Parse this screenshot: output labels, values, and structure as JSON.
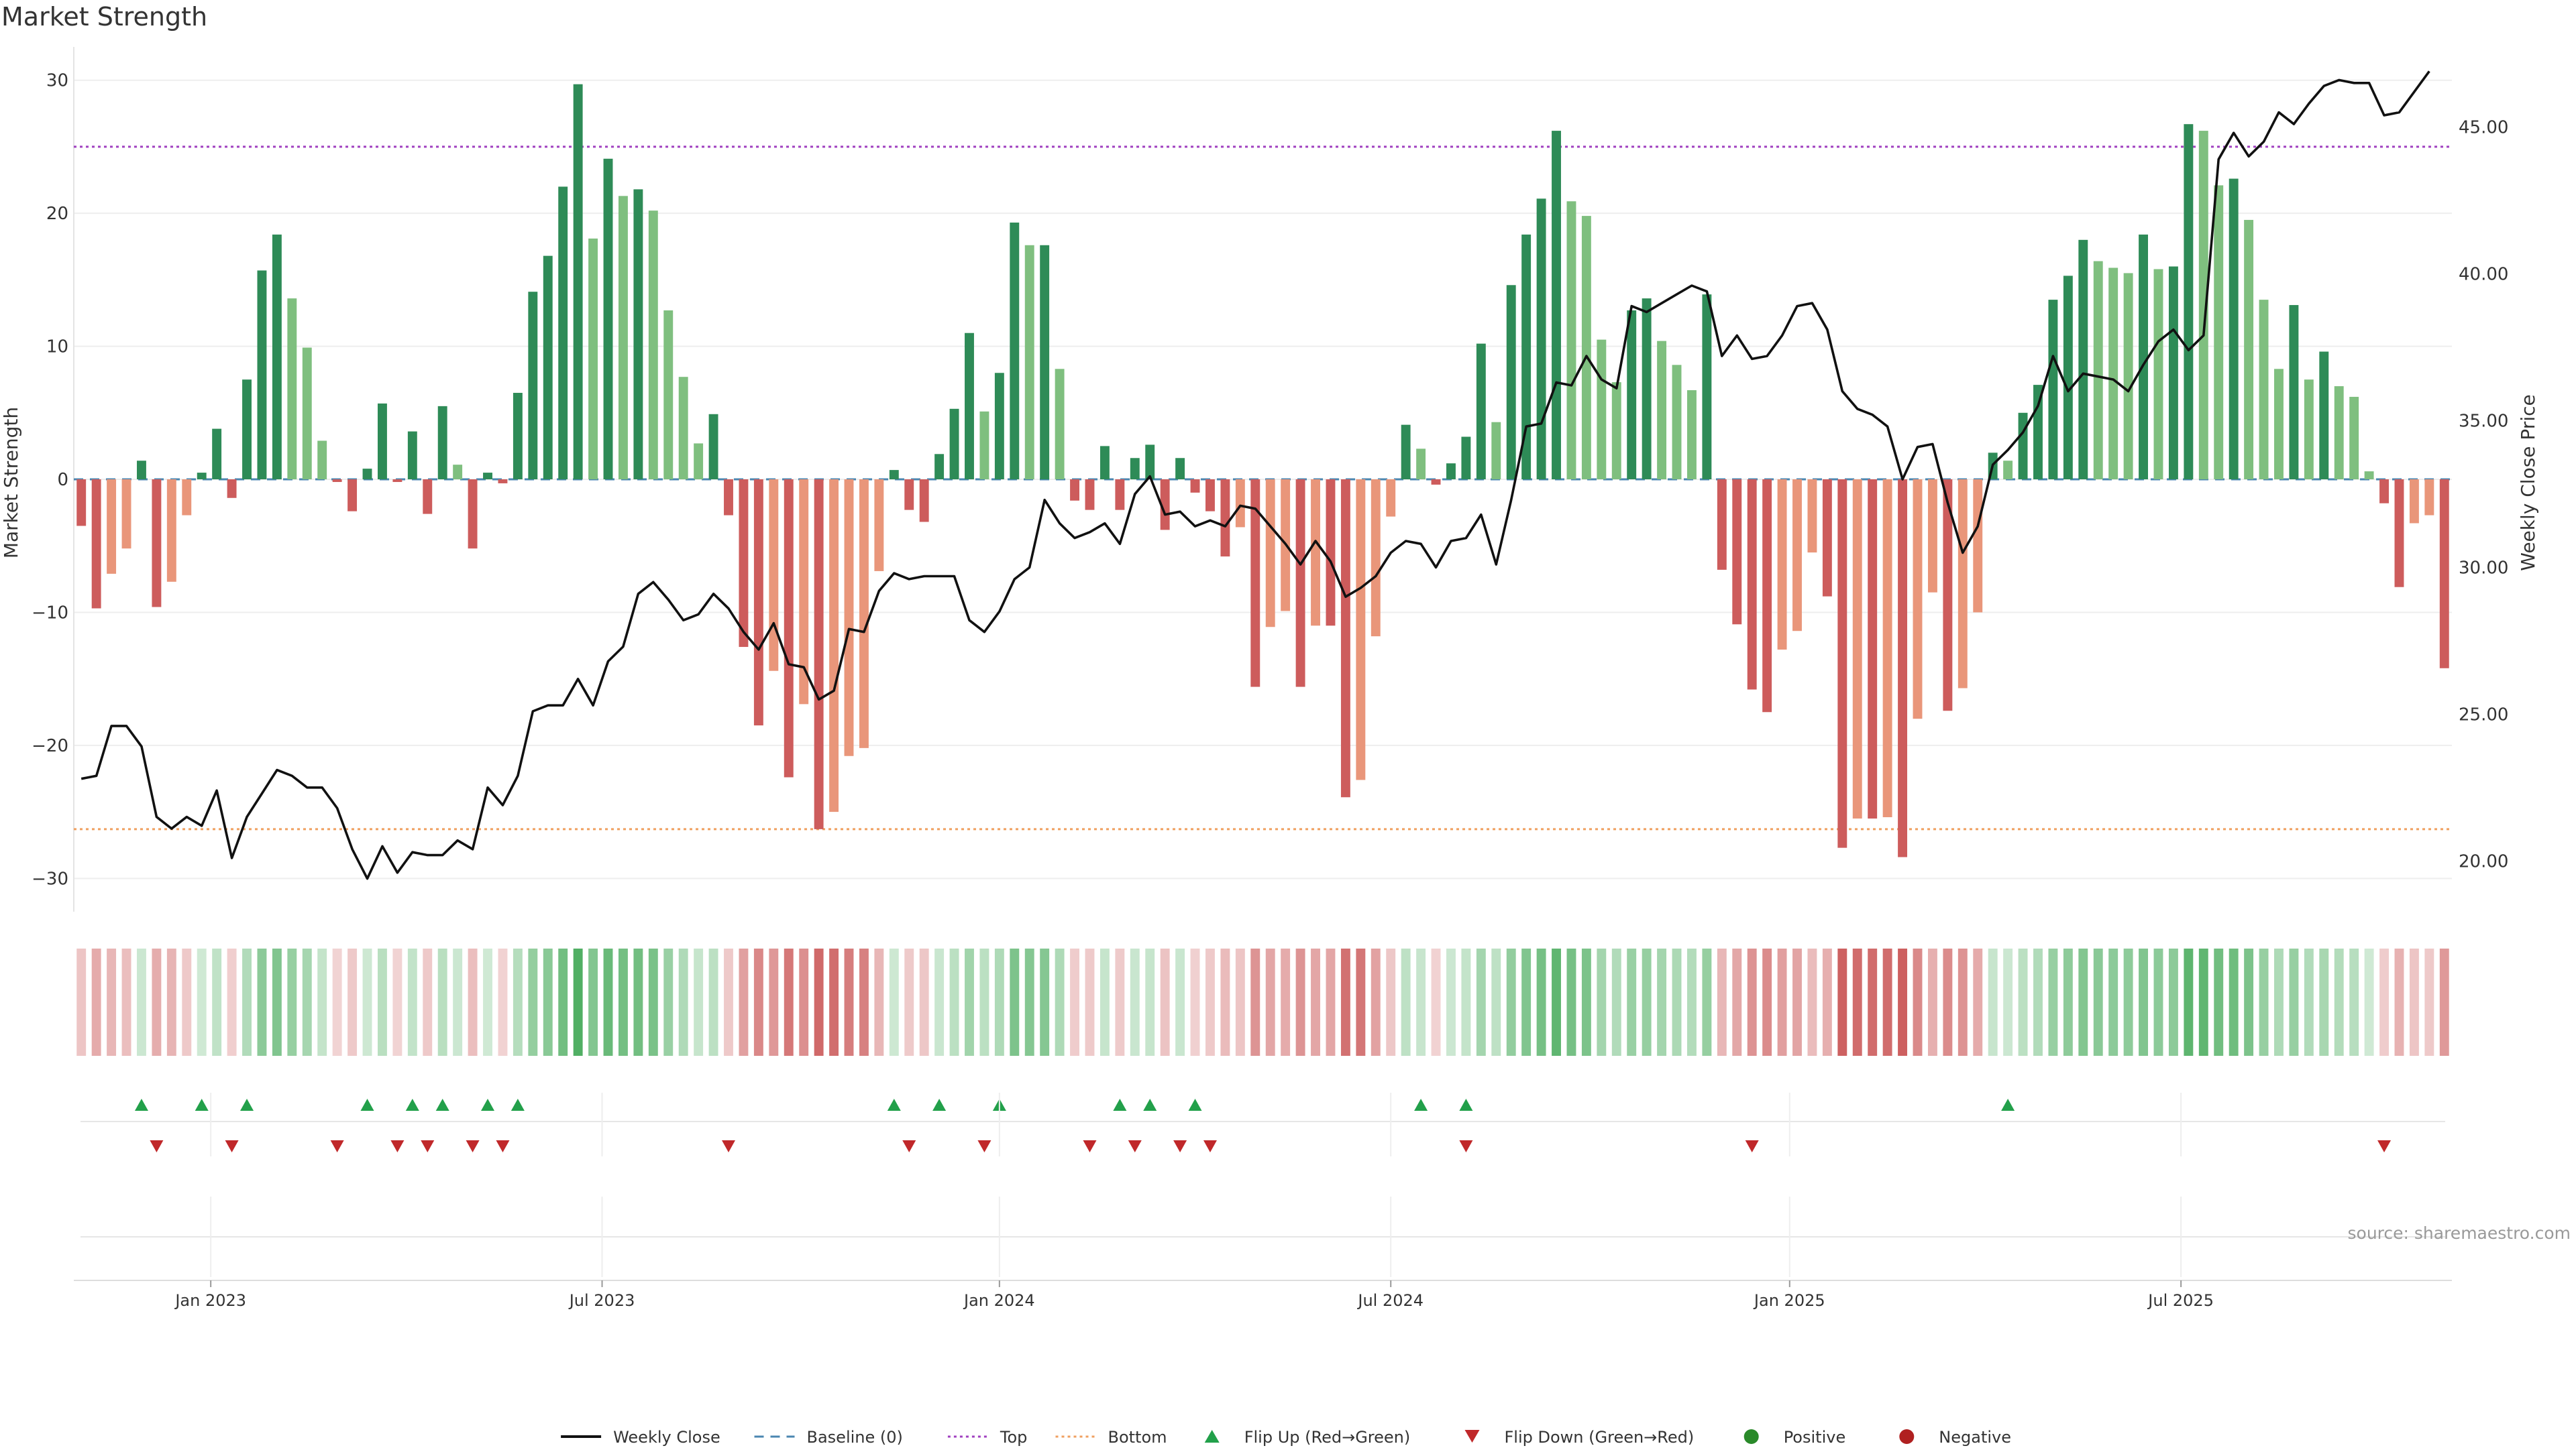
{
  "chart_data": {
    "type": "bar",
    "title": "Market Strength",
    "ylabel_left": "Market Strength",
    "ylabel_right": "Weekly Close Price",
    "ylim_left": [
      -32,
      32
    ],
    "ylim_right": [
      18.5,
      47.5
    ],
    "yticks_left": [
      "30",
      "20",
      "10",
      "0",
      "−10",
      "−20",
      "−30"
    ],
    "yticks_left_values": [
      30,
      20,
      10,
      0,
      -10,
      -20,
      -30
    ],
    "yticks_right": [
      "45.00",
      "40.00",
      "35.00",
      "30.00",
      "25.00",
      "20.00"
    ],
    "yticks_right_values": [
      45,
      40,
      35,
      30,
      25,
      20
    ],
    "top_level": 25,
    "bottom_level": -26.3,
    "xticks": [
      "Jan 2023",
      "Jul 2023",
      "Jan 2024",
      "Jul 2024",
      "Jan 2025",
      "Jul 2025"
    ],
    "xticks_week_index": [
      8.6,
      34.6,
      61,
      87,
      113.5,
      139.5
    ],
    "series": [
      {
        "name": "Market Strength",
        "values": [
          -3.5,
          -9.7,
          -7.1,
          -5.2,
          1.4,
          -9.6,
          -7.7,
          -2.7,
          0.5,
          3.8,
          -1.4,
          7.5,
          15.7,
          18.4,
          13.6,
          9.9,
          2.9,
          -0.2,
          -2.4,
          0.8,
          5.7,
          -0.2,
          3.6,
          -2.6,
          5.5,
          1.1,
          -5.2,
          0.5,
          -0.3,
          6.5,
          14.1,
          16.8,
          22,
          29.7,
          18.1,
          24.1,
          21.3,
          21.8,
          20.2,
          12.7,
          7.7,
          2.7,
          4.9,
          -2.7,
          -12.6,
          -18.5,
          -14.4,
          -22.4,
          -16.9,
          -26.3,
          -25,
          -20.8,
          -20.2,
          -6.9,
          0.7,
          -2.3,
          -3.2,
          1.9,
          5.3,
          11,
          5.1,
          8,
          19.3,
          17.6,
          17.6,
          8.3,
          -1.6,
          -2.3,
          2.5,
          -2.3,
          1.6,
          2.6,
          -3.8,
          1.6,
          -1,
          -2.4,
          -5.8,
          -3.6,
          -15.6,
          -11.1,
          -9.9,
          -15.6,
          -11,
          -11,
          -23.9,
          -22.6,
          -11.8,
          -2.8,
          4.1,
          2.3,
          -0.4,
          1.2,
          3.2,
          10.2,
          4.3,
          14.6,
          18.4,
          21.1,
          26.2,
          20.9,
          19.8,
          10.5,
          7.3,
          12.7,
          13.6,
          10.4,
          8.6,
          6.7,
          13.9,
          -6.8,
          -10.9,
          -15.8,
          -17.5,
          -12.8,
          -11.4,
          -5.5,
          -8.8,
          -27.7,
          -25.5,
          -25.5,
          -25.4,
          -28.4,
          -18,
          -8.5,
          -17.4,
          -15.7,
          -10,
          2,
          1.4,
          5,
          7.1,
          13.5,
          15.3,
          18,
          16.4,
          15.9,
          15.5,
          18.4,
          15.8,
          16,
          26.7,
          26.2,
          22.1,
          22.6,
          19.5,
          13.5,
          8.3,
          13.1,
          7.5,
          9.6,
          7,
          6.2,
          0.6,
          -1.8,
          -8.1,
          -3.3,
          -2.7,
          -14.2
        ]
      },
      {
        "name": "Weekly Close",
        "values": [
          22.8,
          22.9,
          24.6,
          24.6,
          23.9,
          21.5,
          21.1,
          21.5,
          21.2,
          22.4,
          20.1,
          21.5,
          22.3,
          23.1,
          22.9,
          22.5,
          22.5,
          21.8,
          20.4,
          19.4,
          20.5,
          19.6,
          20.3,
          20.2,
          20.2,
          20.7,
          20.4,
          22.5,
          21.9,
          22.9,
          25.1,
          25.3,
          25.3,
          26.2,
          25.3,
          26.8,
          27.3,
          29.1,
          29.5,
          28.9,
          28.2,
          28.4,
          29.1,
          28.6,
          27.8,
          27.2,
          28.1,
          26.7,
          26.6,
          25.5,
          25.8,
          27.9,
          27.8,
          29.2,
          29.8,
          29.6,
          29.7,
          29.7,
          29.7,
          28.2,
          27.8,
          28.5,
          29.6,
          30,
          32.3,
          31.5,
          31,
          31.2,
          31.5,
          30.8,
          32.5,
          33.1,
          31.8,
          31.9,
          31.4,
          31.6,
          31.4,
          32.1,
          32,
          31.4,
          30.8,
          30.1,
          30.9,
          30.2,
          29,
          29.3,
          29.7,
          30.5,
          30.9,
          30.8,
          30,
          30.9,
          31,
          31.8,
          30.1,
          32.3,
          34.8,
          34.9,
          36.3,
          36.2,
          37.2,
          36.4,
          36.1,
          38.9,
          38.7,
          39,
          39.3,
          39.6,
          39.4,
          37.2,
          37.9,
          37.1,
          37.2,
          37.9,
          38.9,
          39,
          38.1,
          36,
          35.4,
          35.2,
          34.8,
          33,
          34.1,
          34.2,
          32.2,
          30.5,
          31.4,
          33.5,
          34,
          34.6,
          35.5,
          37.2,
          36,
          36.6,
          36.5,
          36.4,
          36,
          36.9,
          37.7,
          38.1,
          37.4,
          37.9,
          43.9,
          44.8,
          44,
          44.5,
          45.5,
          45.1,
          45.8,
          46.4,
          46.6,
          46.5,
          46.5,
          45.4,
          45.5,
          46.2,
          46.9
        ]
      }
    ],
    "flip_up_weeks": [
      4,
      8,
      11,
      19,
      22,
      24,
      27,
      29,
      54,
      57,
      61,
      69,
      71,
      74,
      89,
      92,
      128
    ],
    "flip_down_weeks": [
      5,
      10,
      17,
      21,
      23,
      26,
      28,
      43,
      55,
      60,
      67,
      70,
      73,
      75,
      92,
      111,
      153
    ],
    "legend_position": "bottom-center",
    "legend": [
      {
        "label": "Weekly Close"
      },
      {
        "label": "Baseline (0)"
      },
      {
        "label": "Top"
      },
      {
        "label": "Bottom"
      },
      {
        "label": "Flip Up (Red→Green)"
      },
      {
        "label": "Flip Down (Green→Red)"
      },
      {
        "label": "Positive"
      },
      {
        "label": "Negative"
      }
    ]
  },
  "source_note": "source: sharemaestro.com",
  "colors": {
    "pos_strong": "#2e8b57",
    "pos_light": "#7fbf7f",
    "neg_strong": "#cd5c5c",
    "neg_light": "#e9967a",
    "line": "#111111",
    "top_line": "#a040c0",
    "bottom_line": "#f0a060",
    "baseline": "#4a86b0",
    "flip_up": "#22a04a",
    "flip_down": "#c0282a",
    "legend_positive": "#2a8a2a",
    "legend_negative": "#b02020"
  }
}
